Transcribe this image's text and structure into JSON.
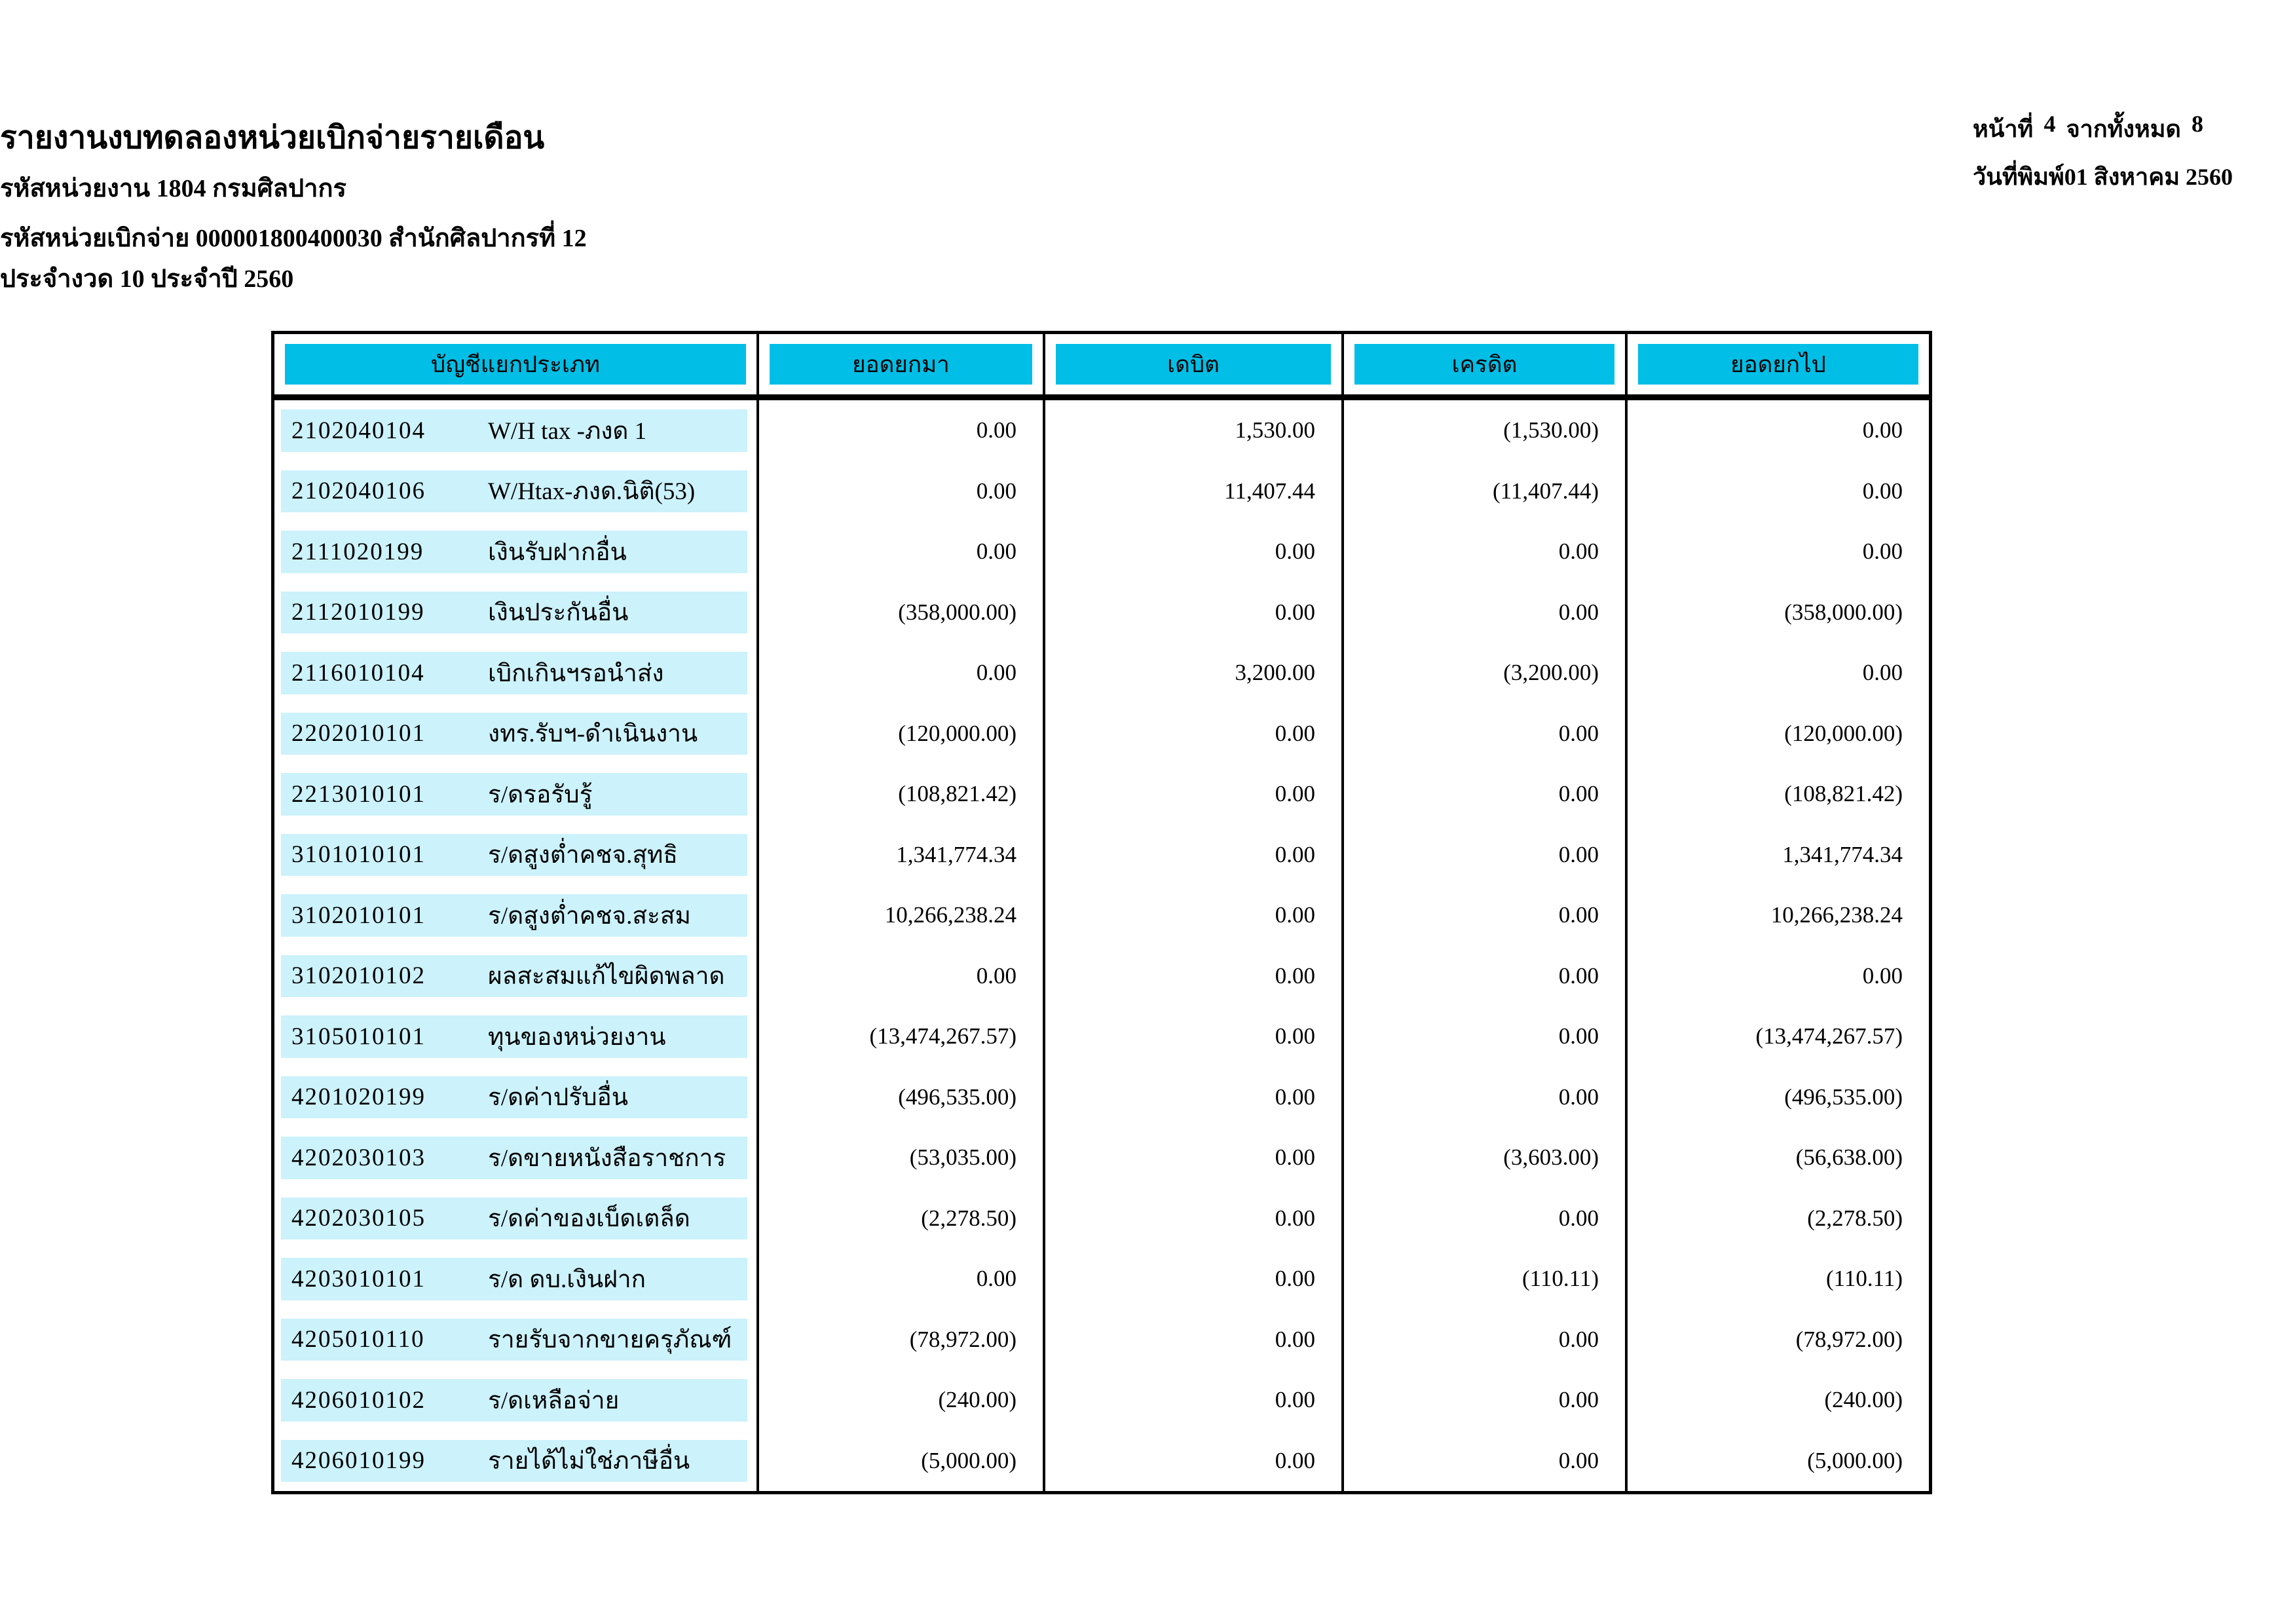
{
  "header": {
    "title": "รายงานงบทดลองหน่วยเบิกจ่ายรายเดือน",
    "subtitle_agency": "รหัสหน่วยงาน 1804 กรมศิลปากร",
    "subtitle_unit": "รหัสหน่วยเบิกจ่าย 000001800400030 สำนักศิลปากรที่ 12",
    "subtitle_period": "ประจำงวด 10 ประจำปี 2560",
    "page_label": "หน้าที่",
    "page_number": "4",
    "total_label": "จากทั้งหมด",
    "total_pages": "8",
    "print_date_label": "วันที่พิมพ์",
    "print_date": "01 สิงหาคม 2560"
  },
  "colors": {
    "header_bg": "#00BEE6",
    "row_bg": "#CCF2FB"
  },
  "table": {
    "columns": [
      "บัญชีแยกประเภท",
      "ยอดยกมา",
      "เดบิต",
      "เครดิต",
      "ยอดยกไป"
    ],
    "rows": [
      {
        "code": "2102040104",
        "name": "W/H tax -ภงด 1",
        "carry_forward": "0.00",
        "debit": "1,530.00",
        "credit": "(1,530.00)",
        "balance": "0.00"
      },
      {
        "code": "2102040106",
        "name": "W/Htax-ภงด.นิติ(53)",
        "carry_forward": "0.00",
        "debit": "11,407.44",
        "credit": "(11,407.44)",
        "balance": "0.00"
      },
      {
        "code": "2111020199",
        "name": "เงินรับฝากอื่น",
        "carry_forward": "0.00",
        "debit": "0.00",
        "credit": "0.00",
        "balance": "0.00"
      },
      {
        "code": "2112010199",
        "name": "เงินประกันอื่น",
        "carry_forward": "(358,000.00)",
        "debit": "0.00",
        "credit": "0.00",
        "balance": "(358,000.00)"
      },
      {
        "code": "2116010104",
        "name": "เบิกเกินฯรอนำส่ง",
        "carry_forward": "0.00",
        "debit": "3,200.00",
        "credit": "(3,200.00)",
        "balance": "0.00"
      },
      {
        "code": "2202010101",
        "name": "งทร.รับฯ-ดำเนินงาน",
        "carry_forward": "(120,000.00)",
        "debit": "0.00",
        "credit": "0.00",
        "balance": "(120,000.00)"
      },
      {
        "code": "2213010101",
        "name": "ร/ดรอรับรู้",
        "carry_forward": "(108,821.42)",
        "debit": "0.00",
        "credit": "0.00",
        "balance": "(108,821.42)"
      },
      {
        "code": "3101010101",
        "name": "ร/ดสูงต่ำคชจ.สุทธิ",
        "carry_forward": "1,341,774.34",
        "debit": "0.00",
        "credit": "0.00",
        "balance": "1,341,774.34"
      },
      {
        "code": "3102010101",
        "name": "ร/ดสูงต่ำคชจ.สะสม",
        "carry_forward": "10,266,238.24",
        "debit": "0.00",
        "credit": "0.00",
        "balance": "10,266,238.24"
      },
      {
        "code": "3102010102",
        "name": "ผลสะสมแก้ไขผิดพลาด",
        "carry_forward": "0.00",
        "debit": "0.00",
        "credit": "0.00",
        "balance": "0.00"
      },
      {
        "code": "3105010101",
        "name": "ทุนของหน่วยงาน",
        "carry_forward": "(13,474,267.57)",
        "debit": "0.00",
        "credit": "0.00",
        "balance": "(13,474,267.57)"
      },
      {
        "code": "4201020199",
        "name": "ร/ดค่าปรับอื่น",
        "carry_forward": "(496,535.00)",
        "debit": "0.00",
        "credit": "0.00",
        "balance": "(496,535.00)"
      },
      {
        "code": "4202030103",
        "name": "ร/ดขายหนังสือราชการ",
        "carry_forward": "(53,035.00)",
        "debit": "0.00",
        "credit": "(3,603.00)",
        "balance": "(56,638.00)"
      },
      {
        "code": "4202030105",
        "name": "ร/ดค่าของเบ็ดเตล็ด",
        "carry_forward": "(2,278.50)",
        "debit": "0.00",
        "credit": "0.00",
        "balance": "(2,278.50)"
      },
      {
        "code": "4203010101",
        "name": "ร/ด ดบ.เงินฝาก",
        "carry_forward": "0.00",
        "debit": "0.00",
        "credit": "(110.11)",
        "balance": "(110.11)"
      },
      {
        "code": "4205010110",
        "name": "รายรับจากขายครุภัณฑ์",
        "carry_forward": "(78,972.00)",
        "debit": "0.00",
        "credit": "0.00",
        "balance": "(78,972.00)"
      },
      {
        "code": "4206010102",
        "name": "ร/ดเหลือจ่าย",
        "carry_forward": "(240.00)",
        "debit": "0.00",
        "credit": "0.00",
        "balance": "(240.00)"
      },
      {
        "code": "4206010199",
        "name": "รายได้ไม่ใช่ภาษีอื่น",
        "carry_forward": "(5,000.00)",
        "debit": "0.00",
        "credit": "0.00",
        "balance": "(5,000.00)"
      }
    ]
  }
}
